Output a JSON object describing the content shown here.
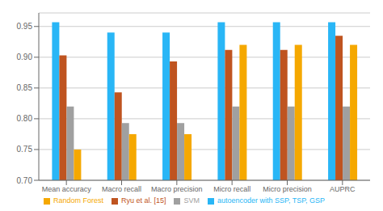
{
  "chart_data": {
    "type": "bar",
    "categories": [
      "Mean accuracy",
      "Macro recall",
      "Macro precision",
      "Micro recall",
      "Micro precision",
      "AUPRC"
    ],
    "series": [
      {
        "name": "autoencoder with SSP, TSP, GSP",
        "color": "#29B6F6",
        "values": [
          0.957,
          0.94,
          0.94,
          0.957,
          0.957,
          0.957
        ]
      },
      {
        "name": "Ryu et al. [15]",
        "color": "#BF5420",
        "values": [
          0.903,
          0.843,
          0.893,
          0.912,
          0.912,
          0.935
        ]
      },
      {
        "name": "SVM",
        "color": "#A0A0A0",
        "values": [
          0.82,
          0.793,
          0.793,
          0.82,
          0.82,
          0.82
        ]
      },
      {
        "name": "Random Forest",
        "color": "#F5A800",
        "values": [
          0.75,
          0.775,
          0.775,
          0.92,
          0.92,
          0.92
        ]
      }
    ],
    "ylim": [
      0.7,
      0.972
    ],
    "yticks": [
      {
        "value": 0.7,
        "label": "0.70"
      },
      0.75,
      {
        "value": 0.8,
        "label": "0.80"
      },
      0.85,
      {
        "value": 0.9,
        "label": "0.90"
      },
      0.95
    ],
    "grid": true,
    "legend": "bottom"
  }
}
